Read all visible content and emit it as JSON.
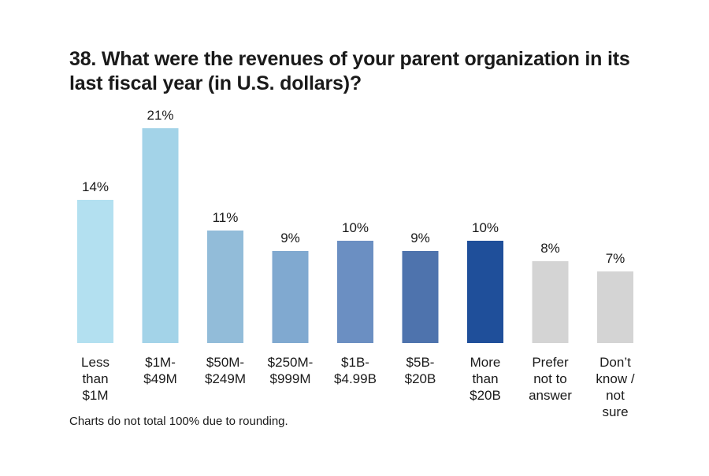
{
  "title": "38. What were the revenues of your parent organization in its last fiscal year (in U.S. dollars)?",
  "footnote": "Charts do not total 100% due to rounding.",
  "chart_data": {
    "type": "bar",
    "categories": [
      [
        "Less",
        "than",
        "$1M"
      ],
      [
        "$1M-",
        "$49M"
      ],
      [
        "$50M-",
        "$249M"
      ],
      [
        "$250M-",
        "$999M"
      ],
      [
        "$1B-",
        "$4.99B"
      ],
      [
        "$5B-",
        "$20B"
      ],
      [
        "More",
        "than",
        "$20B"
      ],
      [
        "Prefer",
        "not to",
        "answer"
      ],
      [
        "Don’t",
        "know /",
        "not",
        "sure"
      ]
    ],
    "values": [
      14,
      21,
      11,
      9,
      10,
      9,
      10,
      8,
      7
    ],
    "value_labels": [
      "14%",
      "21%",
      "11%",
      "9%",
      "10%",
      "9%",
      "10%",
      "8%",
      "7%"
    ],
    "colors": [
      "#b3e0f0",
      "#a3d3e8",
      "#92bcd9",
      "#80a9d0",
      "#6b8fc2",
      "#4e73ad",
      "#1f4f9a",
      "#d4d4d4",
      "#d4d4d4"
    ],
    "ylim": [
      0,
      21
    ],
    "grid": false,
    "legend": "none"
  }
}
